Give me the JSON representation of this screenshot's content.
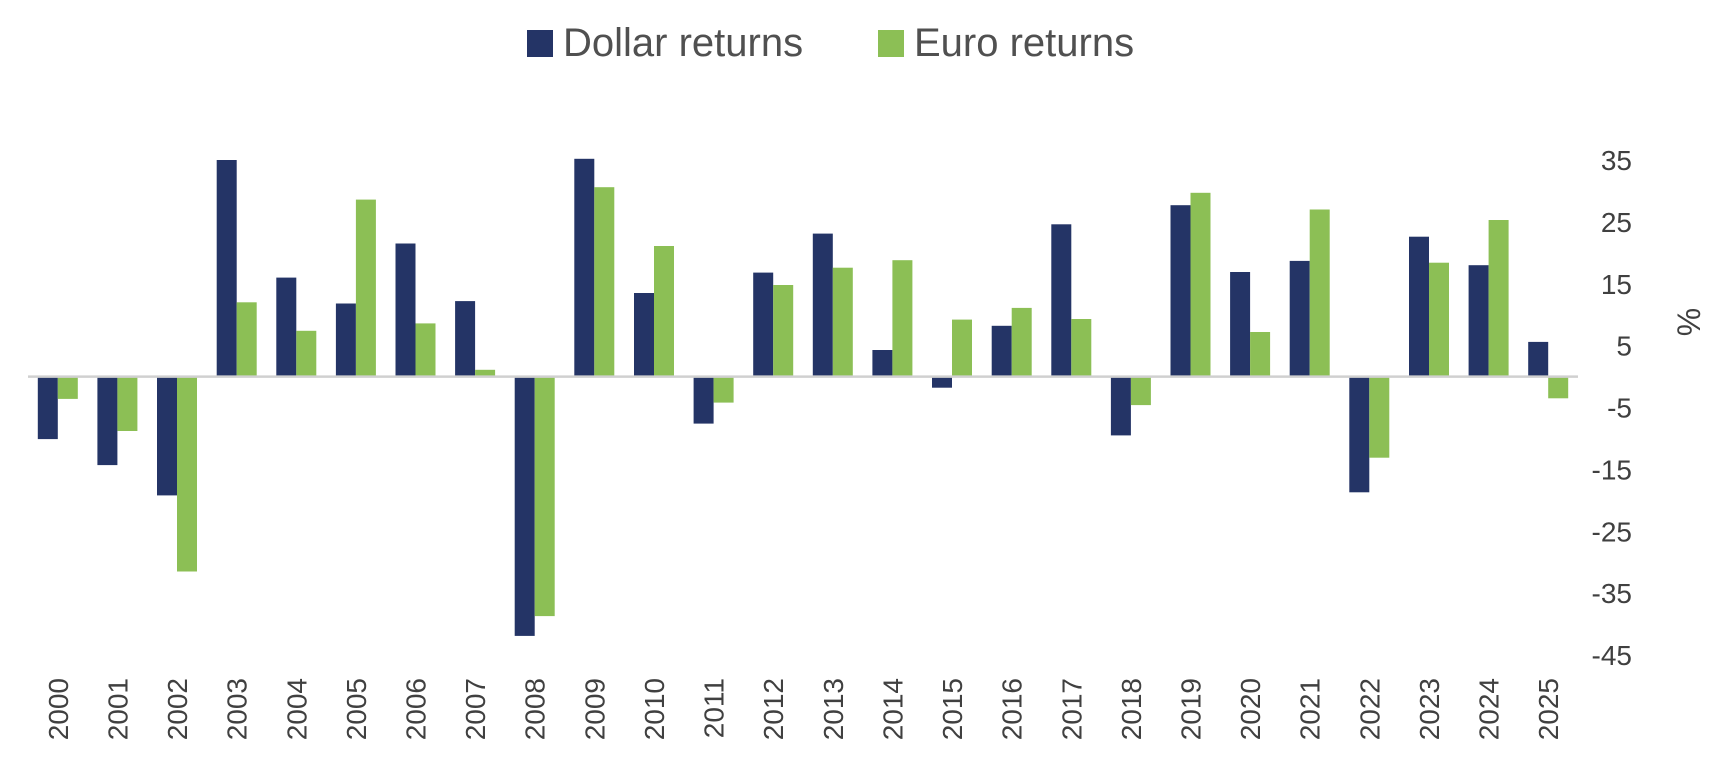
{
  "chart_data": {
    "type": "bar",
    "title": "",
    "xlabel": "",
    "ylabel": "%",
    "ylim": [
      -45,
      35
    ],
    "yticks": [
      35,
      25,
      15,
      5,
      -5,
      -15,
      -25,
      -35,
      -45
    ],
    "grid": false,
    "legend_position": "top-center",
    "y_axis_side": "right",
    "categories": [
      "2000",
      "2001",
      "2002",
      "2003",
      "2004",
      "2005",
      "2006",
      "2007",
      "2008",
      "2009",
      "2010",
      "2011",
      "2012",
      "2013",
      "2014",
      "2015",
      "2016",
      "2017",
      "2018",
      "2019",
      "2020",
      "2021",
      "2022",
      "2023",
      "2024",
      "2025"
    ],
    "series": [
      {
        "name": "Dollar returns",
        "color": "#243466",
        "values": [
          -10.1,
          -14.3,
          -19.2,
          35.0,
          16.0,
          11.8,
          21.5,
          12.2,
          -41.9,
          35.2,
          13.5,
          -7.6,
          16.8,
          23.1,
          4.3,
          -1.8,
          8.2,
          24.6,
          -9.5,
          27.7,
          16.9,
          18.7,
          -18.7,
          22.6,
          18.0,
          5.6
        ]
      },
      {
        "name": "Euro returns",
        "color": "#8cbf55",
        "values": [
          -3.6,
          -8.8,
          -31.5,
          12.0,
          7.4,
          28.6,
          8.6,
          1.1,
          -38.7,
          30.6,
          21.1,
          -4.2,
          14.8,
          17.6,
          18.8,
          9.2,
          11.1,
          9.3,
          -4.6,
          29.7,
          7.2,
          27.0,
          -13.1,
          18.4,
          25.3,
          -3.5
        ]
      }
    ]
  }
}
